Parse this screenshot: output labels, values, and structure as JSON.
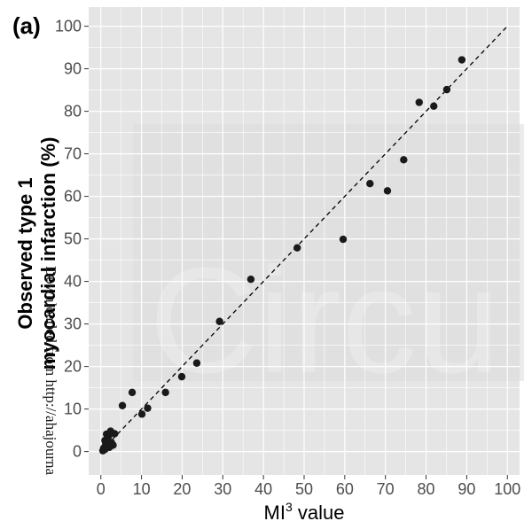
{
  "panel_label": "(a)",
  "watermark": {
    "text": "Circu",
    "download_note": "Downloaded from http://ahajourna"
  },
  "colors": {
    "panel_bg": "#e5e5e5",
    "grid": "#ffffff",
    "points": "#1a1a1a",
    "identity_line": "#000000"
  },
  "chart_data": {
    "type": "scatter",
    "xlabel": "MI³ value",
    "xlabel_base": "MI",
    "xlabel_sup": "3",
    "xlabel_rest": " value",
    "ylabel": "Observed type 1 myocardial infarction (%)",
    "ylabel_line1": "Observed type 1",
    "ylabel_line2": "myocardial infarction (%)",
    "xlim": [
      -3,
      103
    ],
    "ylim": [
      -5.5,
      104.5
    ],
    "x_ticks": [
      0,
      10,
      20,
      30,
      40,
      50,
      60,
      70,
      80,
      90,
      100
    ],
    "x_tick_labels": [
      "0",
      "10",
      "20",
      "30",
      "40",
      "50",
      "60",
      "70",
      "80",
      "90",
      "100"
    ],
    "y_ticks": [
      0,
      10,
      20,
      30,
      40,
      50,
      60,
      70,
      80,
      90,
      100
    ],
    "y_tick_labels": [
      "0",
      "10",
      "20",
      "30",
      "40",
      "50",
      "60",
      "70",
      "80",
      "90",
      "100"
    ],
    "grid": true,
    "reference_line": {
      "style": "dashed",
      "from": [
        0,
        0
      ],
      "to": [
        100,
        100
      ]
    },
    "points": [
      {
        "x": 0.5,
        "y": 0.2
      },
      {
        "x": 0.7,
        "y": 0.8
      },
      {
        "x": 1.0,
        "y": 0.5
      },
      {
        "x": 1.2,
        "y": 1.8
      },
      {
        "x": 1.0,
        "y": 2.6
      },
      {
        "x": 1.4,
        "y": 4.1
      },
      {
        "x": 1.9,
        "y": 3.6
      },
      {
        "x": 2.1,
        "y": 1.0
      },
      {
        "x": 2.4,
        "y": 4.8
      },
      {
        "x": 2.6,
        "y": 2.1
      },
      {
        "x": 3.0,
        "y": 1.5
      },
      {
        "x": 3.4,
        "y": 4.2
      },
      {
        "x": 5.3,
        "y": 10.8
      },
      {
        "x": 7.7,
        "y": 13.9
      },
      {
        "x": 10.1,
        "y": 8.8
      },
      {
        "x": 11.5,
        "y": 10.2
      },
      {
        "x": 15.9,
        "y": 13.9
      },
      {
        "x": 19.9,
        "y": 17.6
      },
      {
        "x": 23.6,
        "y": 20.8
      },
      {
        "x": 29.2,
        "y": 30.6
      },
      {
        "x": 36.9,
        "y": 40.5
      },
      {
        "x": 48.3,
        "y": 47.9
      },
      {
        "x": 59.6,
        "y": 49.9
      },
      {
        "x": 66.2,
        "y": 63.0
      },
      {
        "x": 70.5,
        "y": 61.3
      },
      {
        "x": 74.5,
        "y": 68.6
      },
      {
        "x": 78.3,
        "y": 82.1
      },
      {
        "x": 81.9,
        "y": 81.2
      },
      {
        "x": 85.1,
        "y": 85.1
      },
      {
        "x": 88.8,
        "y": 92.1
      }
    ]
  }
}
